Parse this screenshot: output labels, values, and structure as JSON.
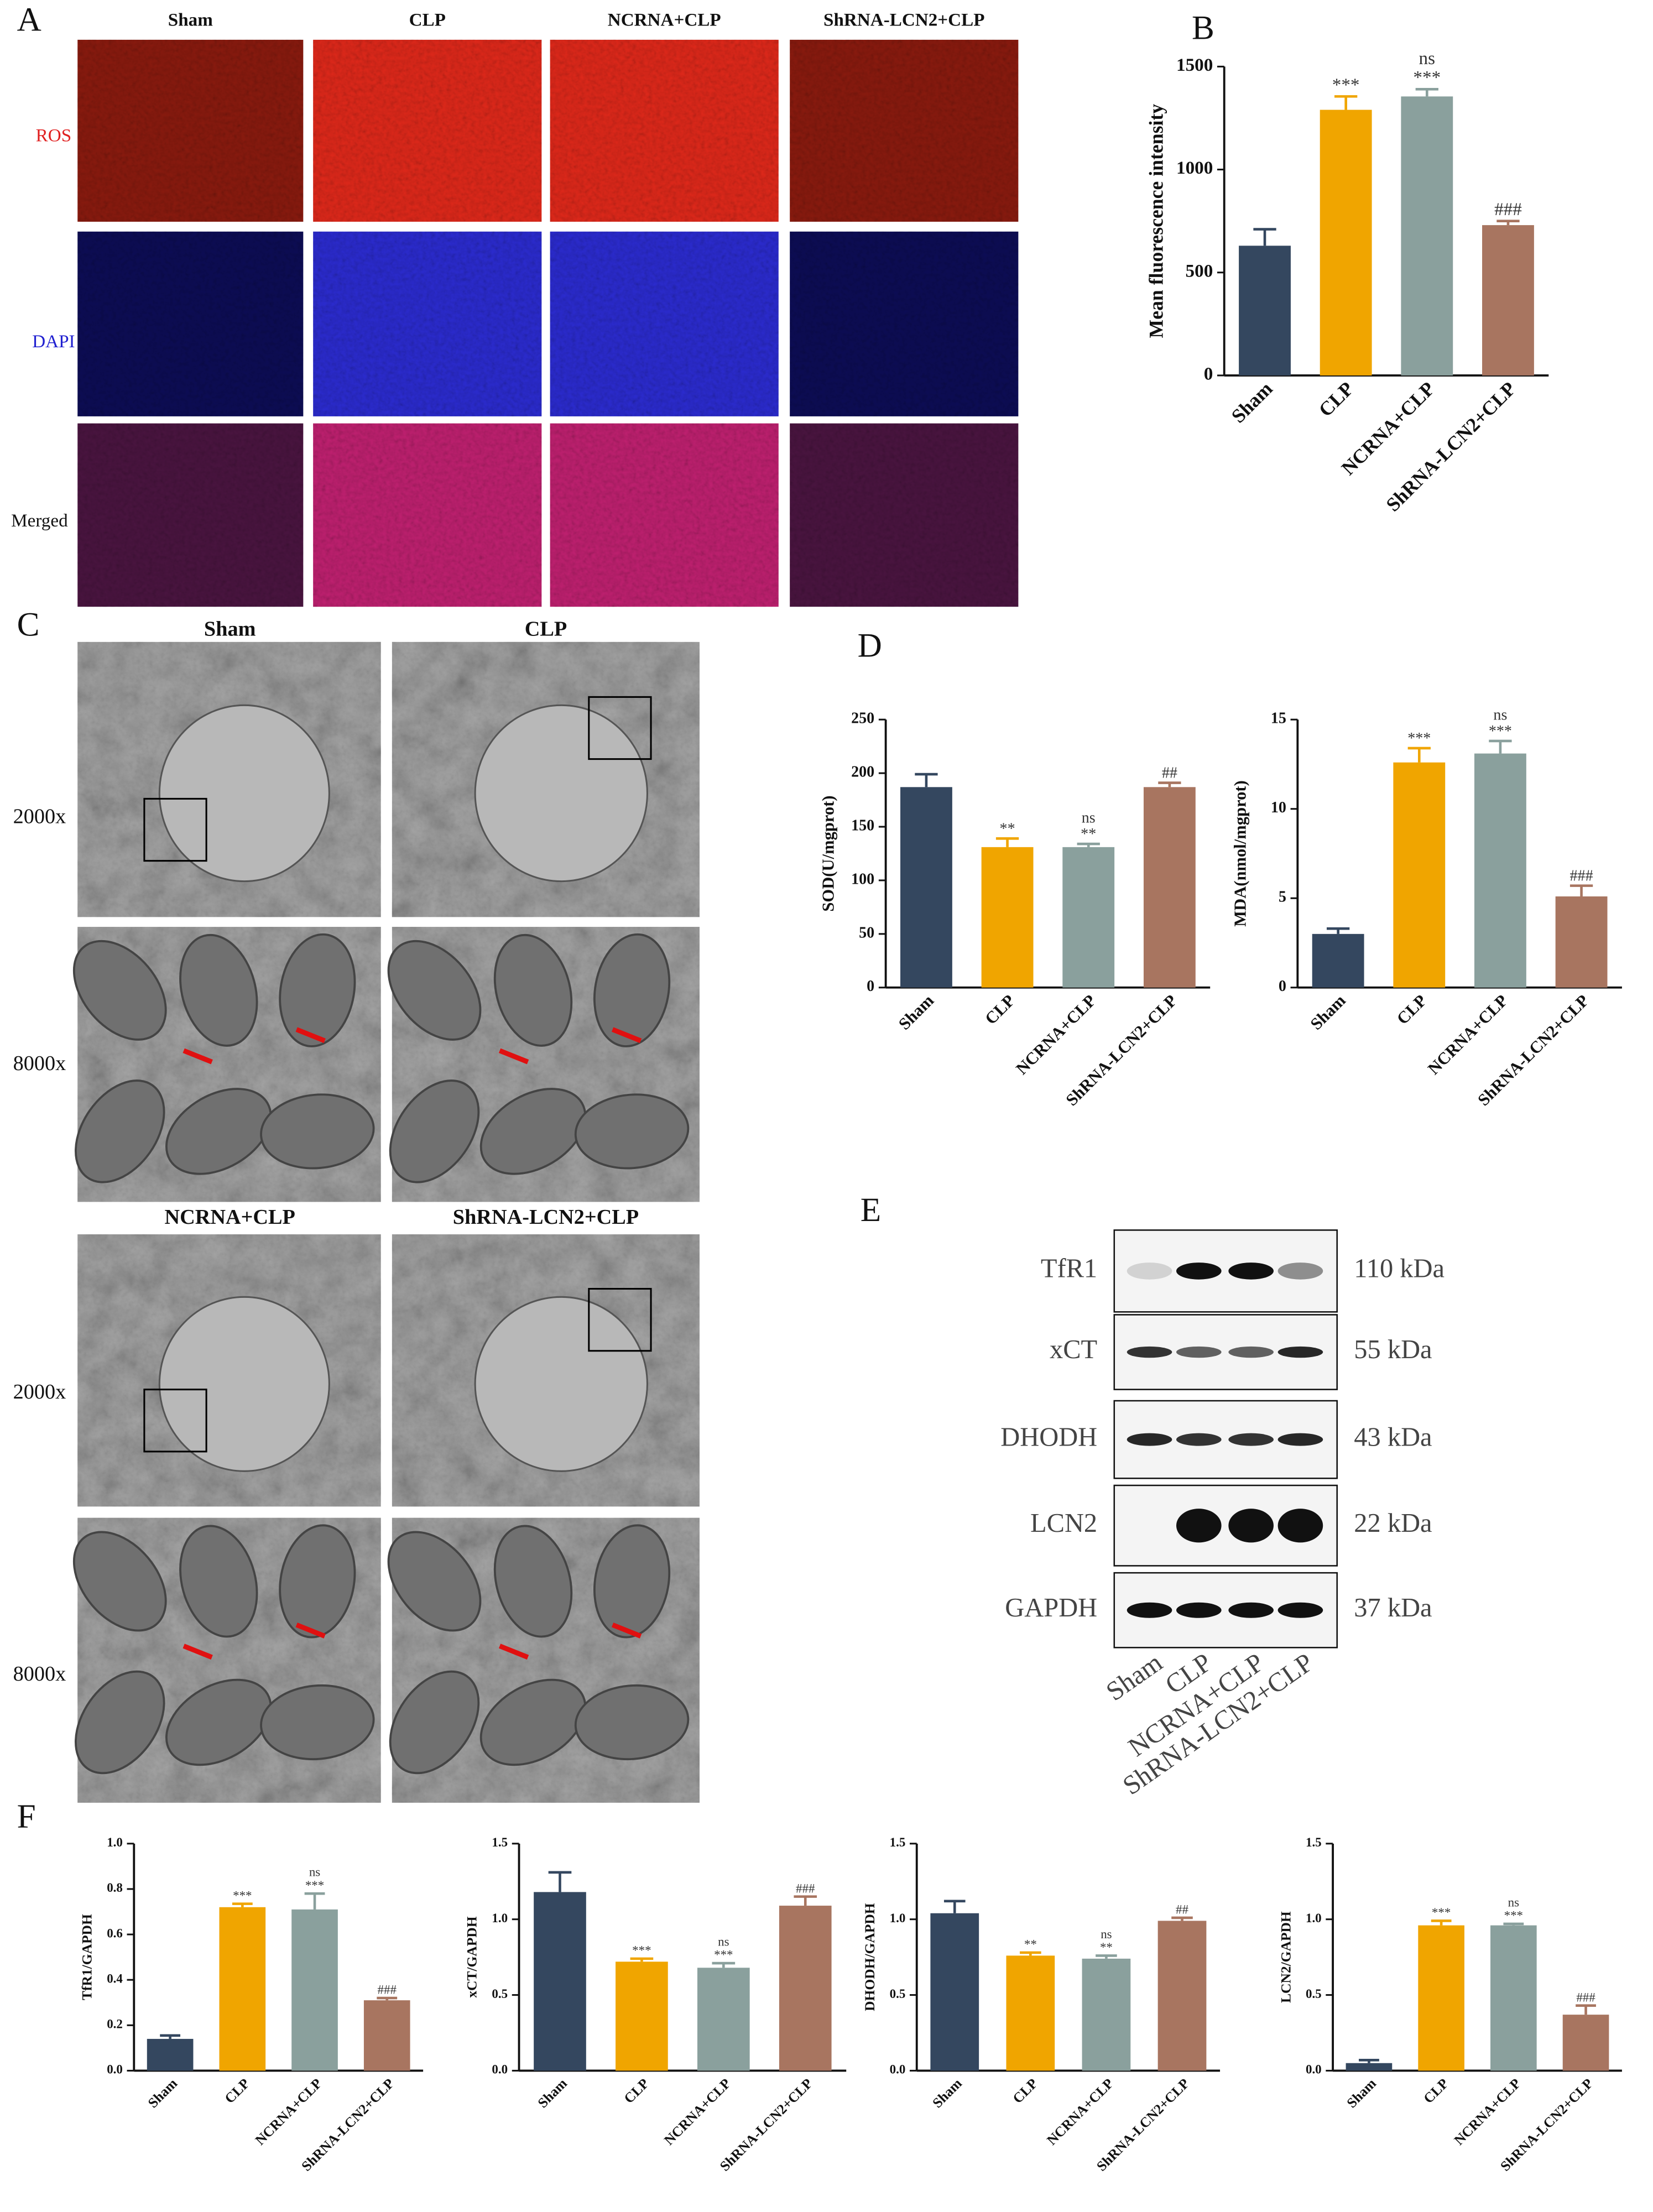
{
  "panel_labels": [
    "A",
    "B",
    "C",
    "D",
    "E",
    "F"
  ],
  "panel_a": {
    "columns": [
      "Sham",
      "CLP",
      "NCRNA+CLP",
      "ShRNA-LCN2+CLP"
    ],
    "rows": [
      "ROS",
      "DAPI",
      "Merged"
    ]
  },
  "panel_c": {
    "columns": [
      "Sham",
      "CLP",
      "NCRNA+CLP",
      "ShRNA-LCN2+CLP"
    ],
    "rows": [
      "2000x",
      "8000x",
      "2000x",
      "8000x"
    ]
  },
  "panel_e": {
    "bands": [
      "TfR1",
      "xCT",
      "DHODH",
      "LCN2",
      "GAPDH"
    ],
    "sizes": [
      "110 kDa",
      "55 kDa",
      "43 kDa",
      "22 kDa",
      "37 kDa"
    ],
    "lanes": [
      "Sham",
      "CLP",
      "NCRNA+CLP",
      "ShRNA-LCN2+CLP"
    ]
  },
  "chart_data": [
    {
      "type": "bar",
      "ylabel": "Mean fluorescence intensity",
      "categories": [
        "Sham",
        "CLP",
        "NCRNA+CLP",
        "ShRNA-LCN2+CLP"
      ],
      "values": [
        630,
        1290,
        1355,
        730
      ],
      "errors": [
        80,
        65,
        35,
        20
      ],
      "colors": [
        "#34475f",
        "#f0a500",
        "#8aa09d",
        "#a87560"
      ],
      "significance": [
        null,
        [
          "***"
        ],
        [
          "ns",
          "***"
        ],
        [
          "###"
        ]
      ],
      "ylim": [
        0,
        1500
      ],
      "yticks": [
        0,
        500,
        1000,
        1500
      ]
    },
    {
      "type": "bar",
      "ylabel": "SOD(U/mgprot)",
      "categories": [
        "Sham",
        "CLP",
        "NCRNA+CLP",
        "ShRNA-LCN2+CLP"
      ],
      "values": [
        187,
        131,
        131,
        187
      ],
      "errors": [
        12,
        8,
        3,
        4
      ],
      "colors": [
        "#34475f",
        "#f0a500",
        "#8aa09d",
        "#a87560"
      ],
      "significance": [
        null,
        [
          "**"
        ],
        [
          "ns",
          "**"
        ],
        [
          "##"
        ]
      ],
      "ylim": [
        0,
        250
      ],
      "yticks": [
        0,
        50,
        100,
        150,
        200,
        250
      ]
    },
    {
      "type": "bar",
      "ylabel": "MDA(nmol/mgprot)",
      "categories": [
        "Sham",
        "CLP",
        "NCRNA+CLP",
        "ShRNA-LCN2+CLP"
      ],
      "values": [
        3.0,
        12.6,
        13.1,
        5.1
      ],
      "errors": [
        0.3,
        0.8,
        0.7,
        0.6
      ],
      "colors": [
        "#34475f",
        "#f0a500",
        "#8aa09d",
        "#a87560"
      ],
      "significance": [
        null,
        [
          "***"
        ],
        [
          "ns",
          "***"
        ],
        [
          "###"
        ]
      ],
      "ylim": [
        0,
        15
      ],
      "yticks": [
        0,
        5,
        10,
        15
      ]
    },
    {
      "type": "bar",
      "ylabel": "TfR1/GAPDH",
      "categories": [
        "Sham",
        "CLP",
        "NCRNA+CLP",
        "ShRNA-LCN2+CLP"
      ],
      "values": [
        0.14,
        0.72,
        0.71,
        0.31
      ],
      "errors": [
        0.015,
        0.015,
        0.07,
        0.01
      ],
      "colors": [
        "#34475f",
        "#f0a500",
        "#8aa09d",
        "#a87560"
      ],
      "significance": [
        null,
        [
          "***"
        ],
        [
          "ns",
          "***"
        ],
        [
          "###"
        ]
      ],
      "ylim": [
        0,
        1.0
      ],
      "yticks": [
        {
          "value": 0,
          "label": "0.0"
        },
        0.2,
        0.4,
        0.6,
        0.8,
        {
          "value": 1.0,
          "label": "1.0"
        }
      ]
    },
    {
      "type": "bar",
      "ylabel": "xCT/GAPDH",
      "categories": [
        "Sham",
        "CLP",
        "NCRNA+CLP",
        "ShRNA-LCN2+CLP"
      ],
      "values": [
        1.18,
        0.72,
        0.68,
        1.09
      ],
      "errors": [
        0.13,
        0.02,
        0.03,
        0.06
      ],
      "colors": [
        "#34475f",
        "#f0a500",
        "#8aa09d",
        "#a87560"
      ],
      "significance": [
        null,
        [
          "***"
        ],
        [
          "ns",
          "***"
        ],
        [
          "###"
        ]
      ],
      "ylim": [
        0,
        1.5
      ],
      "yticks": [
        {
          "value": 0,
          "label": "0.0"
        },
        0.5,
        {
          "value": 1.0,
          "label": "1.0"
        },
        1.5
      ]
    },
    {
      "type": "bar",
      "ylabel": "DHODH/GAPDH",
      "categories": [
        "Sham",
        "CLP",
        "NCRNA+CLP",
        "ShRNA-LCN2+CLP"
      ],
      "values": [
        1.04,
        0.76,
        0.74,
        0.99
      ],
      "errors": [
        0.08,
        0.02,
        0.02,
        0.02
      ],
      "colors": [
        "#34475f",
        "#f0a500",
        "#8aa09d",
        "#a87560"
      ],
      "significance": [
        null,
        [
          "**"
        ],
        [
          "ns",
          "**"
        ],
        [
          "##"
        ]
      ],
      "ylim": [
        0,
        1.5
      ],
      "yticks": [
        {
          "value": 0,
          "label": "0.0"
        },
        0.5,
        {
          "value": 1.0,
          "label": "1.0"
        },
        1.5
      ]
    },
    {
      "type": "bar",
      "ylabel": "LCN2/GAPDH",
      "categories": [
        "Sham",
        "CLP",
        "NCRNA+CLP",
        "ShRNA-LCN2+CLP"
      ],
      "values": [
        0.05,
        0.96,
        0.96,
        0.37
      ],
      "errors": [
        0.02,
        0.03,
        0.01,
        0.06
      ],
      "colors": [
        "#34475f",
        "#f0a500",
        "#8aa09d",
        "#a87560"
      ],
      "significance": [
        null,
        [
          "***"
        ],
        [
          "ns",
          "***"
        ],
        [
          "###"
        ]
      ],
      "ylim": [
        0,
        1.5
      ],
      "yticks": [
        {
          "value": 0,
          "label": "0.0"
        },
        0.5,
        {
          "value": 1.0,
          "label": "1.0"
        },
        1.5
      ]
    }
  ]
}
